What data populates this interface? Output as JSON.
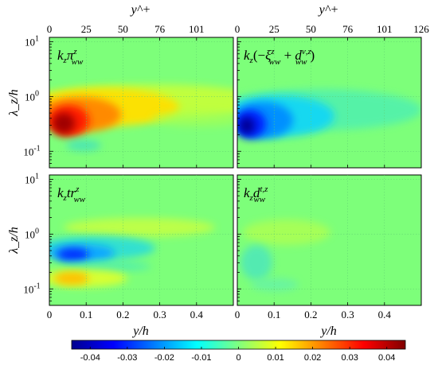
{
  "chart_data": {
    "type": "heatmap",
    "panels": [
      {
        "label": "k_z π^z_ww",
        "label_parts": {
          "a": "k",
          "as": "z",
          "b": "π",
          "sup": "z",
          "sub": "ww"
        },
        "top_axis": true,
        "x_axis_labels": false,
        "y_axis_labels": true
      },
      {
        "label": "k_z(−ξ^z_ww + d^{ν,z}_ww)",
        "label_parts": {
          "a": "k",
          "as": "z",
          "p1": "(−",
          "b": "ξ",
          "sup": "z",
          "sub": "ww",
          "mid": " + ",
          "c": "d",
          "csup": "ν,z",
          "csub": "ww",
          "p2": ")"
        },
        "top_axis": true,
        "x_axis_labels": false,
        "y_axis_labels": false
      },
      {
        "label": "k_z tr^z_ww",
        "label_parts": {
          "a": "k",
          "as": "z",
          "b": "tr",
          "sup": "z",
          "sub": "ww"
        },
        "top_axis": false,
        "x_axis_labels": true,
        "y_axis_labels": true
      },
      {
        "label": "k_z d^{t,z}_ww",
        "label_parts": {
          "a": "k",
          "as": "z",
          "b": "d",
          "sup": "t,z",
          "sub": "ww"
        },
        "top_axis": false,
        "x_axis_labels": true,
        "y_axis_labels": false
      }
    ],
    "x_axis": {
      "label": "y/h",
      "range": [
        0,
        0.5
      ],
      "ticks": [
        0,
        0.1,
        0.2,
        0.3,
        0.4
      ],
      "tick_labels": [
        "0",
        "0.1",
        "0.2",
        "0.3",
        "0.4"
      ]
    },
    "y_axis": {
      "label": "λ_z/h",
      "scale": "log",
      "range": [
        0.05,
        12
      ],
      "ticks": [
        0.1,
        1,
        10
      ],
      "tick_labels": [
        "10",
        "10",
        "10"
      ],
      "tick_exponents": [
        "-1",
        "0",
        "1"
      ]
    },
    "top_axis": {
      "label": "y^+",
      "left_ticks": [
        "0",
        "25",
        "50",
        "76",
        "101"
      ],
      "right_ticks": [
        "0",
        "25",
        "50",
        "76",
        "101",
        "126"
      ],
      "tick_positions_y_over_h": [
        0,
        0.1,
        0.2,
        0.3,
        0.4,
        0.5
      ]
    },
    "colorbar": {
      "range": [
        -0.045,
        0.045
      ],
      "ticks": [
        -0.04,
        -0.03,
        -0.02,
        -0.01,
        0,
        0.01,
        0.02,
        0.03,
        0.04
      ],
      "tick_labels": [
        "-0.04",
        "-0.03",
        "-0.02",
        "-0.01",
        "0",
        "0.01",
        "0.02",
        "0.03",
        "0.04"
      ],
      "colormap": "jet"
    },
    "features": [
      {
        "panel": 0,
        "y_over_h": 0.05,
        "lambda_over_h": 0.4,
        "value": 0.045
      },
      {
        "panel": 0,
        "y_over_h": 0.14,
        "lambda_over_h": 0.65,
        "value": 0.015
      },
      {
        "panel": 0,
        "y_over_h": 0.38,
        "lambda_over_h": 1.0,
        "value": 0.004
      },
      {
        "panel": 1,
        "y_over_h": 0.03,
        "lambda_over_h": 0.35,
        "value": -0.042
      },
      {
        "panel": 1,
        "y_over_h": 0.16,
        "lambda_over_h": 0.6,
        "value": -0.01
      },
      {
        "panel": 2,
        "y_over_h": 0.055,
        "lambda_over_h": 0.4,
        "value": -0.03
      },
      {
        "panel": 2,
        "y_over_h": 0.06,
        "lambda_over_h": 0.16,
        "value": 0.02
      },
      {
        "panel": 2,
        "y_over_h": 0.28,
        "lambda_over_h": 1.2,
        "value": 0.006
      },
      {
        "panel": 3,
        "y_over_h": 0.06,
        "lambda_over_h": 0.3,
        "value": -0.005
      },
      {
        "panel": 3,
        "y_over_h": 0.12,
        "lambda_over_h": 1.3,
        "value": 0.005
      }
    ]
  }
}
